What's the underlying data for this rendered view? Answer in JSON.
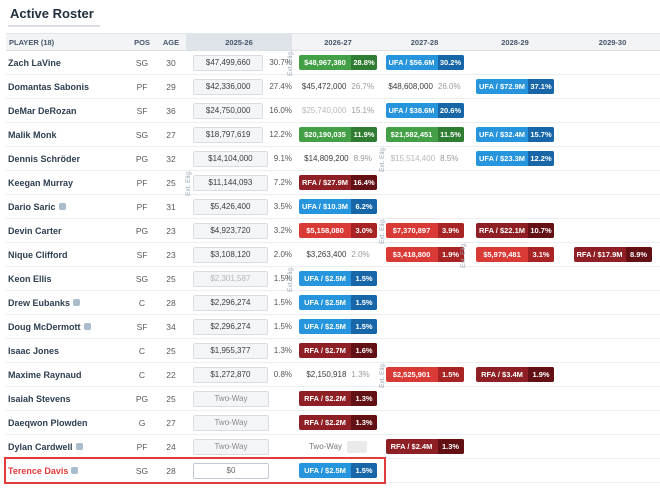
{
  "title": "Active Roster",
  "labels": {
    "ext_elig": "Ext. Elig."
  },
  "colors": {
    "col_highlight": "#dfe4ea",
    "badge_green": "#43a047",
    "badge_green_dark": "#2e7d32",
    "badge_blue": "#2795dd",
    "badge_blue_dark": "#1767a8",
    "badge_red": "#d93a36",
    "badge_red_dark": "#a82424",
    "badge_maroon": "#8e1f24",
    "badge_maroon_dark": "#621014",
    "highlight": "#e23b3b"
  },
  "table": {
    "columns": [
      {
        "label": "PLAYER (18)"
      },
      {
        "label": "POS"
      },
      {
        "label": "AGE"
      },
      {
        "label": "2025-26",
        "highlighted": true
      },
      {
        "label": "2026-27"
      },
      {
        "label": "2027-28"
      },
      {
        "label": "2028-29"
      },
      {
        "label": "2029-30"
      }
    ],
    "players": [
      {
        "name": "Zach LaVine",
        "icon": false,
        "pos": "SG",
        "age": "30",
        "cells": [
          {
            "type": "box",
            "label": "$47,499,660",
            "pct": "30.7%"
          },
          {
            "type": "badge",
            "color": "green",
            "label": "$48,967,380",
            "pct": "28.8%",
            "ext": true
          },
          {
            "type": "badge",
            "color": "blue",
            "label": "UFA / $56.6M",
            "pct": "30.2%"
          },
          null,
          null
        ]
      },
      {
        "name": "Domantas Sabonis",
        "icon": false,
        "pos": "PF",
        "age": "29",
        "cells": [
          {
            "type": "box",
            "label": "$42,336,000",
            "pct": "27.4%"
          },
          {
            "type": "text",
            "label": "$45,472,000",
            "pct": "26.7%"
          },
          {
            "type": "text",
            "label": "$48,608,000",
            "pct": "26.0%"
          },
          {
            "type": "badge",
            "color": "blue",
            "label": "UFA / $72.9M",
            "pct": "37.1%"
          },
          null
        ]
      },
      {
        "name": "DeMar DeRozan",
        "icon": false,
        "pos": "SF",
        "age": "36",
        "cells": [
          {
            "type": "box",
            "label": "$24,750,000",
            "pct": "16.0%"
          },
          {
            "type": "text",
            "variant": "gray",
            "label": "$25,740,000",
            "pct": "15.1%"
          },
          {
            "type": "badge",
            "color": "blue",
            "label": "UFA / $38.6M",
            "pct": "20.6%"
          },
          null,
          null
        ]
      },
      {
        "name": "Malik Monk",
        "icon": false,
        "pos": "SG",
        "age": "27",
        "cells": [
          {
            "type": "box",
            "label": "$18,797,619",
            "pct": "12.2%"
          },
          {
            "type": "badge",
            "color": "green",
            "label": "$20,190,035",
            "pct": "11.9%"
          },
          {
            "type": "badge",
            "color": "green",
            "label": "$21,582,451",
            "pct": "11.5%"
          },
          {
            "type": "badge",
            "color": "blue",
            "label": "UFA / $32.4M",
            "pct": "15.7%"
          },
          null
        ]
      },
      {
        "name": "Dennis Schröder",
        "icon": false,
        "pos": "PG",
        "age": "32",
        "cells": [
          {
            "type": "box",
            "label": "$14,104,000",
            "pct": "9.1%"
          },
          {
            "type": "text",
            "label": "$14,809,200",
            "pct": "8.9%"
          },
          {
            "type": "text",
            "variant": "gray",
            "label": "$15,514,400",
            "pct": "8.5%",
            "ext": true
          },
          {
            "type": "badge",
            "color": "blue",
            "label": "UFA / $23.3M",
            "pct": "12.2%"
          },
          null
        ]
      },
      {
        "name": "Keegan Murray",
        "icon": false,
        "pos": "PF",
        "age": "25",
        "cells": [
          {
            "type": "box",
            "label": "$11,144,093",
            "pct": "7.2%",
            "ext": true
          },
          {
            "type": "badge",
            "color": "maroon",
            "label": "RFA / $27.9M",
            "pct": "16.4%"
          },
          null,
          null,
          null
        ]
      },
      {
        "name": "Dario Saric",
        "icon": true,
        "pos": "PF",
        "age": "31",
        "cells": [
          {
            "type": "box",
            "label": "$5,426,400",
            "pct": "3.5%"
          },
          {
            "type": "badge",
            "color": "blue",
            "label": "UFA / $10.3M",
            "pct": "6.2%"
          },
          null,
          null,
          null
        ]
      },
      {
        "name": "Devin Carter",
        "icon": false,
        "pos": "PG",
        "age": "23",
        "cells": [
          {
            "type": "box",
            "label": "$4,923,720",
            "pct": "3.2%"
          },
          {
            "type": "badge",
            "color": "red",
            "label": "$5,158,080",
            "pct": "3.0%"
          },
          {
            "type": "badge",
            "color": "red",
            "label": "$7,370,897",
            "pct": "3.9%",
            "ext": true
          },
          {
            "type": "badge",
            "color": "maroon",
            "label": "RFA / $22.1M",
            "pct": "10.7%"
          },
          null
        ]
      },
      {
        "name": "Nique Clifford",
        "icon": false,
        "pos": "SF",
        "age": "23",
        "cells": [
          {
            "type": "box",
            "label": "$3,108,120",
            "pct": "2.0%"
          },
          {
            "type": "text",
            "label": "$3,263,400",
            "pct": "2.0%"
          },
          {
            "type": "badge",
            "color": "red",
            "label": "$3,418,800",
            "pct": "1.9%"
          },
          {
            "type": "badge",
            "color": "red",
            "label": "$5,979,481",
            "pct": "3.1%",
            "ext": true
          },
          {
            "type": "badge",
            "color": "maroon",
            "label": "RFA / $17.9M",
            "pct": "8.9%"
          }
        ]
      },
      {
        "name": "Keon Ellis",
        "icon": false,
        "pos": "SG",
        "age": "25",
        "cells": [
          {
            "type": "box",
            "variant": "gray",
            "label": "$2,301,587",
            "pct": "1.5%"
          },
          {
            "type": "badge",
            "color": "blue",
            "label": "UFA / $2.5M",
            "pct": "1.5%",
            "ext": true
          },
          null,
          null,
          null
        ]
      },
      {
        "name": "Drew Eubanks",
        "icon": true,
        "pos": "C",
        "age": "28",
        "cells": [
          {
            "type": "box",
            "label": "$2,296,274",
            "pct": "1.5%"
          },
          {
            "type": "badge",
            "color": "blue",
            "label": "UFA / $2.5M",
            "pct": "1.5%"
          },
          null,
          null,
          null
        ]
      },
      {
        "name": "Doug McDermott",
        "icon": true,
        "pos": "SF",
        "age": "34",
        "cells": [
          {
            "type": "box",
            "label": "$2,296,274",
            "pct": "1.5%"
          },
          {
            "type": "badge",
            "color": "blue",
            "label": "UFA / $2.5M",
            "pct": "1.5%"
          },
          null,
          null,
          null
        ]
      },
      {
        "name": "Isaac Jones",
        "icon": false,
        "pos": "C",
        "age": "25",
        "cells": [
          {
            "type": "box",
            "label": "$1,955,377",
            "pct": "1.3%"
          },
          {
            "type": "badge",
            "color": "maroon",
            "label": "RFA / $2.7M",
            "pct": "1.6%"
          },
          null,
          null,
          null
        ]
      },
      {
        "name": "Maxime Raynaud",
        "icon": false,
        "pos": "C",
        "age": "22",
        "cells": [
          {
            "type": "box",
            "label": "$1,272,870",
            "pct": "0.8%"
          },
          {
            "type": "text",
            "label": "$2,150,918",
            "pct": "1.3%"
          },
          {
            "type": "badge",
            "color": "red",
            "label": "$2,525,901",
            "pct": "1.5%",
            "ext": true
          },
          {
            "type": "badge",
            "color": "maroon",
            "label": "RFA / $3.4M",
            "pct": "1.9%"
          },
          null
        ]
      },
      {
        "name": "Isaiah Stevens",
        "icon": false,
        "pos": "PG",
        "age": "25",
        "cells": [
          {
            "type": "box",
            "variant": "tw",
            "label": "Two-Way"
          },
          {
            "type": "badge",
            "color": "maroon",
            "label": "RFA / $2.2M",
            "pct": "1.3%"
          },
          null,
          null,
          null
        ]
      },
      {
        "name": "Daeqwon Plowden",
        "icon": false,
        "pos": "G",
        "age": "27",
        "cells": [
          {
            "type": "box",
            "variant": "tw",
            "label": "Two-Way"
          },
          {
            "type": "badge",
            "color": "maroon",
            "label": "RFA / $2.2M",
            "pct": "1.3%"
          },
          null,
          null,
          null
        ]
      },
      {
        "name": "Dylan Cardwell",
        "icon": true,
        "pos": "PF",
        "age": "24",
        "cells": [
          {
            "type": "box",
            "variant": "tw",
            "label": "Two-Way"
          },
          {
            "type": "text",
            "variant": "tw",
            "label": "Two-Way",
            "chip": true
          },
          {
            "type": "badge",
            "color": "maroon",
            "label": "RFA / $2.4M",
            "pct": "1.3%"
          },
          null,
          null
        ]
      },
      {
        "name": "Terence Davis",
        "icon": true,
        "pos": "SG",
        "age": "28",
        "highlight": true,
        "cells": [
          {
            "type": "box",
            "variant": "input",
            "label": "$0"
          },
          {
            "type": "badge",
            "color": "blue",
            "label": "UFA / $2.5M",
            "pct": "1.5%"
          },
          null,
          null,
          null
        ]
      }
    ]
  }
}
